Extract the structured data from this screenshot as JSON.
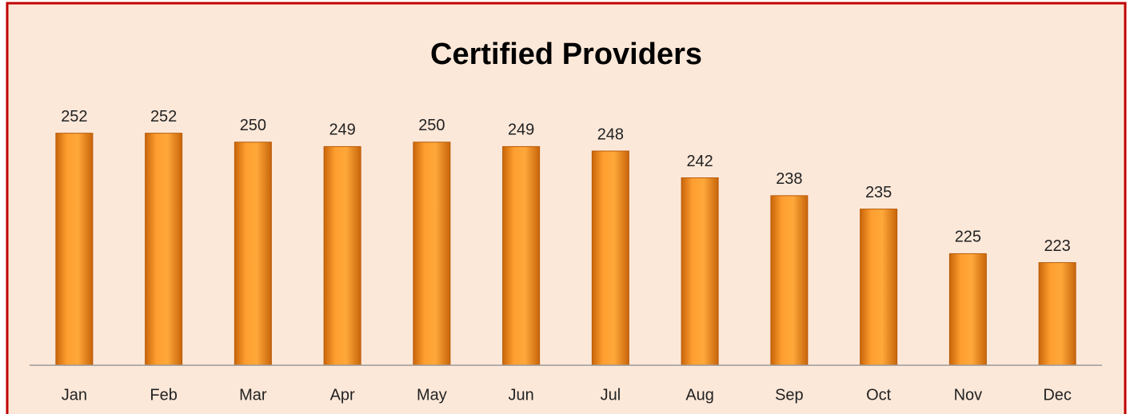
{
  "chart_data": {
    "type": "bar",
    "title": "Certified Providers",
    "categories": [
      "Jan",
      "Feb",
      "Mar",
      "Apr",
      "May",
      "Jun",
      "Jul",
      "Aug",
      "Sep",
      "Oct",
      "Nov",
      "Dec"
    ],
    "values": [
      252,
      252,
      250,
      249,
      250,
      249,
      248,
      242,
      238,
      235,
      225,
      223
    ],
    "color": "#f7931e",
    "ylim": [
      200,
      260
    ]
  }
}
